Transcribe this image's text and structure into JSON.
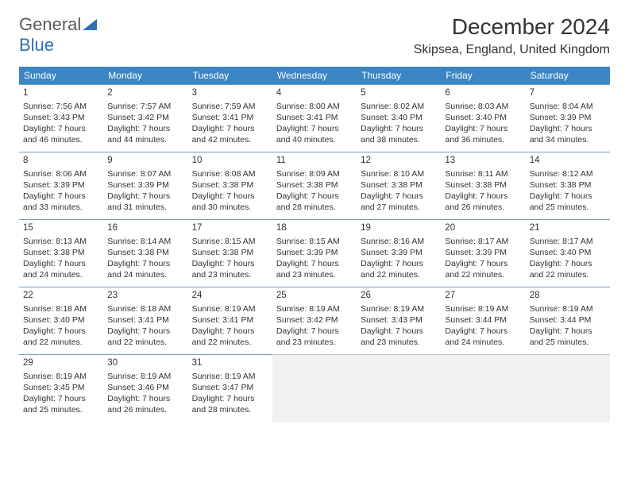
{
  "logo": {
    "text1": "General",
    "text2": "Blue"
  },
  "title": "December 2024",
  "location": "Skipsea, England, United Kingdom",
  "weekdays": [
    "Sunday",
    "Monday",
    "Tuesday",
    "Wednesday",
    "Thursday",
    "Friday",
    "Saturday"
  ],
  "header_bg": "#3b85c4",
  "header_fg": "#ffffff",
  "border_color": "#7a9cb8",
  "empty_bg": "#f1f1f1",
  "days": [
    {
      "n": "1",
      "sr": "Sunrise: 7:56 AM",
      "ss": "Sunset: 3:43 PM",
      "d1": "Daylight: 7 hours",
      "d2": "and 46 minutes."
    },
    {
      "n": "2",
      "sr": "Sunrise: 7:57 AM",
      "ss": "Sunset: 3:42 PM",
      "d1": "Daylight: 7 hours",
      "d2": "and 44 minutes."
    },
    {
      "n": "3",
      "sr": "Sunrise: 7:59 AM",
      "ss": "Sunset: 3:41 PM",
      "d1": "Daylight: 7 hours",
      "d2": "and 42 minutes."
    },
    {
      "n": "4",
      "sr": "Sunrise: 8:00 AM",
      "ss": "Sunset: 3:41 PM",
      "d1": "Daylight: 7 hours",
      "d2": "and 40 minutes."
    },
    {
      "n": "5",
      "sr": "Sunrise: 8:02 AM",
      "ss": "Sunset: 3:40 PM",
      "d1": "Daylight: 7 hours",
      "d2": "and 38 minutes."
    },
    {
      "n": "6",
      "sr": "Sunrise: 8:03 AM",
      "ss": "Sunset: 3:40 PM",
      "d1": "Daylight: 7 hours",
      "d2": "and 36 minutes."
    },
    {
      "n": "7",
      "sr": "Sunrise: 8:04 AM",
      "ss": "Sunset: 3:39 PM",
      "d1": "Daylight: 7 hours",
      "d2": "and 34 minutes."
    },
    {
      "n": "8",
      "sr": "Sunrise: 8:06 AM",
      "ss": "Sunset: 3:39 PM",
      "d1": "Daylight: 7 hours",
      "d2": "and 33 minutes."
    },
    {
      "n": "9",
      "sr": "Sunrise: 8:07 AM",
      "ss": "Sunset: 3:39 PM",
      "d1": "Daylight: 7 hours",
      "d2": "and 31 minutes."
    },
    {
      "n": "10",
      "sr": "Sunrise: 8:08 AM",
      "ss": "Sunset: 3:38 PM",
      "d1": "Daylight: 7 hours",
      "d2": "and 30 minutes."
    },
    {
      "n": "11",
      "sr": "Sunrise: 8:09 AM",
      "ss": "Sunset: 3:38 PM",
      "d1": "Daylight: 7 hours",
      "d2": "and 28 minutes."
    },
    {
      "n": "12",
      "sr": "Sunrise: 8:10 AM",
      "ss": "Sunset: 3:38 PM",
      "d1": "Daylight: 7 hours",
      "d2": "and 27 minutes."
    },
    {
      "n": "13",
      "sr": "Sunrise: 8:11 AM",
      "ss": "Sunset: 3:38 PM",
      "d1": "Daylight: 7 hours",
      "d2": "and 26 minutes."
    },
    {
      "n": "14",
      "sr": "Sunrise: 8:12 AM",
      "ss": "Sunset: 3:38 PM",
      "d1": "Daylight: 7 hours",
      "d2": "and 25 minutes."
    },
    {
      "n": "15",
      "sr": "Sunrise: 8:13 AM",
      "ss": "Sunset: 3:38 PM",
      "d1": "Daylight: 7 hours",
      "d2": "and 24 minutes."
    },
    {
      "n": "16",
      "sr": "Sunrise: 8:14 AM",
      "ss": "Sunset: 3:38 PM",
      "d1": "Daylight: 7 hours",
      "d2": "and 24 minutes."
    },
    {
      "n": "17",
      "sr": "Sunrise: 8:15 AM",
      "ss": "Sunset: 3:38 PM",
      "d1": "Daylight: 7 hours",
      "d2": "and 23 minutes."
    },
    {
      "n": "18",
      "sr": "Sunrise: 8:15 AM",
      "ss": "Sunset: 3:39 PM",
      "d1": "Daylight: 7 hours",
      "d2": "and 23 minutes."
    },
    {
      "n": "19",
      "sr": "Sunrise: 8:16 AM",
      "ss": "Sunset: 3:39 PM",
      "d1": "Daylight: 7 hours",
      "d2": "and 22 minutes."
    },
    {
      "n": "20",
      "sr": "Sunrise: 8:17 AM",
      "ss": "Sunset: 3:39 PM",
      "d1": "Daylight: 7 hours",
      "d2": "and 22 minutes."
    },
    {
      "n": "21",
      "sr": "Sunrise: 8:17 AM",
      "ss": "Sunset: 3:40 PM",
      "d1": "Daylight: 7 hours",
      "d2": "and 22 minutes."
    },
    {
      "n": "22",
      "sr": "Sunrise: 8:18 AM",
      "ss": "Sunset: 3:40 PM",
      "d1": "Daylight: 7 hours",
      "d2": "and 22 minutes."
    },
    {
      "n": "23",
      "sr": "Sunrise: 8:18 AM",
      "ss": "Sunset: 3:41 PM",
      "d1": "Daylight: 7 hours",
      "d2": "and 22 minutes."
    },
    {
      "n": "24",
      "sr": "Sunrise: 8:19 AM",
      "ss": "Sunset: 3:41 PM",
      "d1": "Daylight: 7 hours",
      "d2": "and 22 minutes."
    },
    {
      "n": "25",
      "sr": "Sunrise: 8:19 AM",
      "ss": "Sunset: 3:42 PM",
      "d1": "Daylight: 7 hours",
      "d2": "and 23 minutes."
    },
    {
      "n": "26",
      "sr": "Sunrise: 8:19 AM",
      "ss": "Sunset: 3:43 PM",
      "d1": "Daylight: 7 hours",
      "d2": "and 23 minutes."
    },
    {
      "n": "27",
      "sr": "Sunrise: 8:19 AM",
      "ss": "Sunset: 3:44 PM",
      "d1": "Daylight: 7 hours",
      "d2": "and 24 minutes."
    },
    {
      "n": "28",
      "sr": "Sunrise: 8:19 AM",
      "ss": "Sunset: 3:44 PM",
      "d1": "Daylight: 7 hours",
      "d2": "and 25 minutes."
    },
    {
      "n": "29",
      "sr": "Sunrise: 8:19 AM",
      "ss": "Sunset: 3:45 PM",
      "d1": "Daylight: 7 hours",
      "d2": "and 25 minutes."
    },
    {
      "n": "30",
      "sr": "Sunrise: 8:19 AM",
      "ss": "Sunset: 3:46 PM",
      "d1": "Daylight: 7 hours",
      "d2": "and 26 minutes."
    },
    {
      "n": "31",
      "sr": "Sunrise: 8:19 AM",
      "ss": "Sunset: 3:47 PM",
      "d1": "Daylight: 7 hours",
      "d2": "and 28 minutes."
    }
  ]
}
